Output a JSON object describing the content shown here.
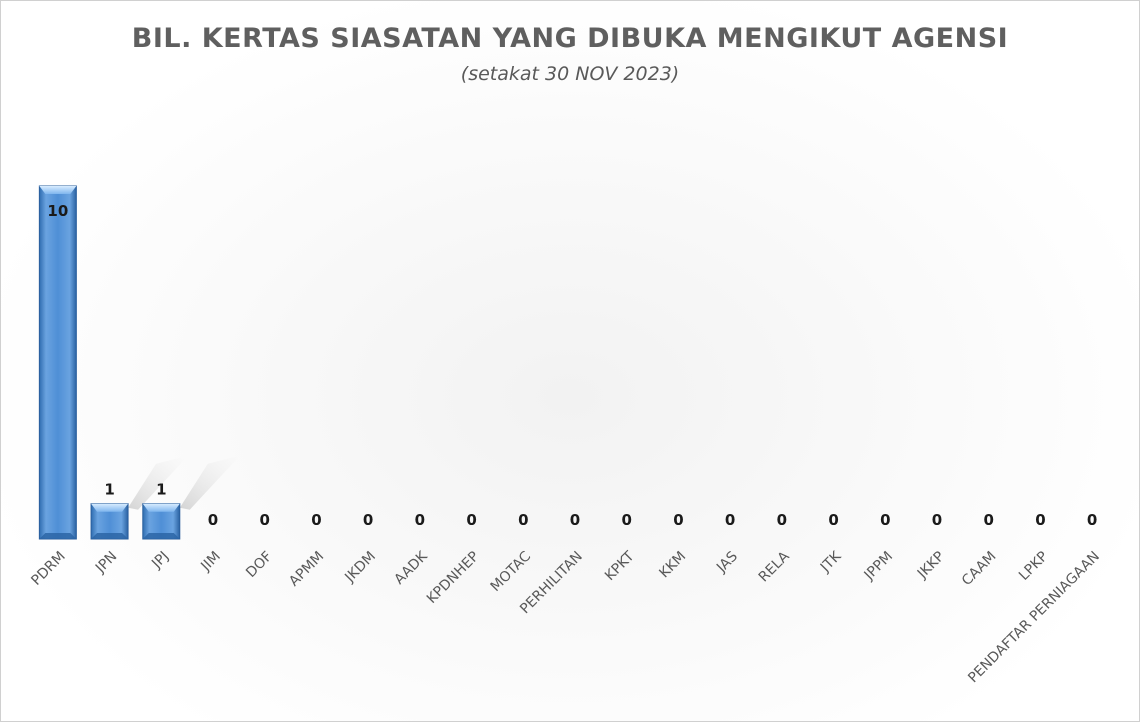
{
  "chart_data": {
    "type": "bar",
    "title": "BIL. KERTAS SIASATAN YANG DIBUKA MENGIKUT AGENSI",
    "subtitle": "(setakat 30 NOV 2023)",
    "categories": [
      "PDRM",
      "JPN",
      "JPJ",
      "JIM",
      "DOF",
      "APMM",
      "JKDM",
      "AADK",
      "KPDNHEP",
      "MOTAC",
      "PERHILITAN",
      "KPKT",
      "KKM",
      "JAS",
      "RELA",
      "JTK",
      "JPPM",
      "JKKP",
      "CAAM",
      "LPKP",
      "PENDAFTAR PERNIAGAAN"
    ],
    "values": [
      10,
      1,
      1,
      0,
      0,
      0,
      0,
      0,
      0,
      0,
      0,
      0,
      0,
      0,
      0,
      0,
      0,
      0,
      0,
      0,
      0
    ],
    "ylim": [
      0,
      10
    ],
    "grid": false,
    "legend": "none",
    "bar_color": "#4a86c8"
  }
}
